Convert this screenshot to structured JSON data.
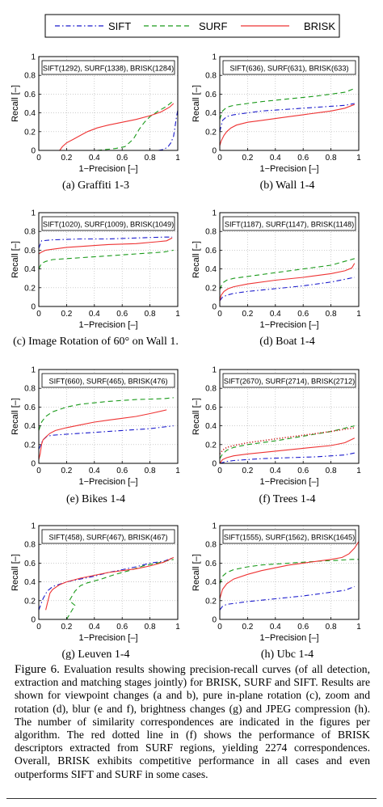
{
  "legend": [
    {
      "name": "SIFT",
      "color": "#1a1acc",
      "dash": "dashdot"
    },
    {
      "name": "SURF",
      "color": "#1a9a1a",
      "dash": "dash"
    },
    {
      "name": "BRISK",
      "color": "#ee3333",
      "dash": "solid"
    }
  ],
  "captions": [
    "(a) Graffiti 1-3",
    "(b) Wall 1-4",
    "(c) Image Rotation of 60° on Wall 1.",
    "(d) Boat 1-4",
    "(e) Bikes 1-4",
    "(f) Trees 1-4",
    "(g) Leuven 1-4",
    "(h) Ubc 1-4"
  ],
  "figure_caption": {
    "label": "Figure 6.",
    "text": "Evaluation results showing precision-recall curves (of all detection, extraction and matching stages jointly) for BRISK, SURF and SIFT. Results are shown for viewpoint changes (a and b), pure in-plane rotation (c), zoom and rotation (d), blur (e and f), brightness changes (g) and JPEG compression (h). The number of similarity correspondences are indicated in the figures per algorithm. The red dotted line in (f) shows the performance of BRISK descriptors extracted from SURF regions, yielding 2274 correspondences. Overall, BRISK exhibits competitive performance in all cases and even outperforms SIFT and SURF in some cases."
  },
  "chart_data": [
    {
      "type": "line",
      "panel": "a",
      "annotation": "SIFT(1292), SURF(1338), BRISK(1284)",
      "xlabel": "1−Precision [–]",
      "ylabel": "Recall [–]",
      "xlim": [
        0,
        1
      ],
      "ylim": [
        0,
        1
      ],
      "xticks": [
        "0",
        "0.2",
        "0.4",
        "0.6",
        "0.8",
        "1"
      ],
      "yticks": [
        "0",
        "0.2",
        "0.4",
        "0.6",
        "0.8",
        "1"
      ],
      "series": [
        {
          "name": "SIFT",
          "x": [
            0.86,
            0.9,
            0.93,
            0.95,
            0.97,
            0.98,
            0.99,
            1.0
          ],
          "y": [
            0.0,
            0.01,
            0.04,
            0.08,
            0.15,
            0.25,
            0.35,
            0.43
          ]
        },
        {
          "name": "SURF",
          "x": [
            0.42,
            0.55,
            0.62,
            0.68,
            0.72,
            0.76,
            0.8,
            0.86,
            0.92,
            0.97
          ],
          "y": [
            0.0,
            0.02,
            0.04,
            0.12,
            0.22,
            0.3,
            0.36,
            0.42,
            0.47,
            0.53
          ]
        },
        {
          "name": "BRISK",
          "x": [
            0.15,
            0.17,
            0.2,
            0.25,
            0.3,
            0.35,
            0.42,
            0.5,
            0.6,
            0.7,
            0.8,
            0.88,
            0.94,
            0.97
          ],
          "y": [
            0.0,
            0.04,
            0.08,
            0.12,
            0.16,
            0.2,
            0.24,
            0.27,
            0.3,
            0.33,
            0.37,
            0.41,
            0.46,
            0.5
          ]
        }
      ]
    },
    {
      "type": "line",
      "panel": "b",
      "annotation": "SIFT(636), SURF(631), BRISK(633)",
      "xlabel": "1−Precision [–]",
      "ylabel": "Recall [–]",
      "xlim": [
        0,
        1
      ],
      "ylim": [
        0,
        1
      ],
      "xticks": [
        "0",
        "0.2",
        "0.4",
        "0.6",
        "0.8",
        "1"
      ],
      "yticks": [
        "0",
        "0.2",
        "0.4",
        "0.6",
        "0.8",
        "1"
      ],
      "series": [
        {
          "name": "SIFT",
          "x": [
            0.0,
            0.02,
            0.05,
            0.1,
            0.2,
            0.3,
            0.5,
            0.7,
            0.9,
            0.97
          ],
          "y": [
            0.2,
            0.32,
            0.36,
            0.38,
            0.4,
            0.42,
            0.44,
            0.46,
            0.48,
            0.5
          ]
        },
        {
          "name": "SURF",
          "x": [
            0.0,
            0.02,
            0.05,
            0.1,
            0.2,
            0.3,
            0.5,
            0.7,
            0.9,
            0.97
          ],
          "y": [
            0.33,
            0.42,
            0.46,
            0.48,
            0.5,
            0.52,
            0.55,
            0.58,
            0.62,
            0.66
          ]
        },
        {
          "name": "BRISK",
          "x": [
            0.0,
            0.01,
            0.03,
            0.05,
            0.08,
            0.12,
            0.2,
            0.3,
            0.4,
            0.5,
            0.6,
            0.7,
            0.8,
            0.9,
            0.97
          ],
          "y": [
            0.05,
            0.1,
            0.16,
            0.2,
            0.24,
            0.27,
            0.3,
            0.32,
            0.34,
            0.36,
            0.38,
            0.4,
            0.42,
            0.45,
            0.49
          ]
        }
      ]
    },
    {
      "type": "line",
      "panel": "c",
      "annotation": "SIFT(1020), SURF(1009), BRISK(1049)",
      "xlabel": "1−Precision [–]",
      "ylabel": "Recall [–]",
      "xlim": [
        0,
        1
      ],
      "ylim": [
        0,
        1
      ],
      "xticks": [
        "0",
        "0.2",
        "0.4",
        "0.6",
        "0.8",
        "1"
      ],
      "yticks": [
        "0",
        "0.2",
        "0.4",
        "0.6",
        "0.8",
        "1"
      ],
      "series": [
        {
          "name": "SIFT",
          "x": [
            0.0,
            0.02,
            0.1,
            0.3,
            0.5,
            0.7,
            0.9,
            0.96
          ],
          "y": [
            0.62,
            0.7,
            0.71,
            0.72,
            0.72,
            0.73,
            0.74,
            0.74
          ]
        },
        {
          "name": "SURF",
          "x": [
            0.0,
            0.02,
            0.05,
            0.1,
            0.3,
            0.5,
            0.7,
            0.9,
            0.97
          ],
          "y": [
            0.4,
            0.46,
            0.48,
            0.5,
            0.52,
            0.54,
            0.56,
            0.58,
            0.6
          ]
        },
        {
          "name": "BRISK",
          "x": [
            0.0,
            0.02,
            0.05,
            0.1,
            0.2,
            0.3,
            0.5,
            0.7,
            0.85,
            0.92,
            0.96
          ],
          "y": [
            0.56,
            0.58,
            0.6,
            0.61,
            0.63,
            0.64,
            0.66,
            0.67,
            0.69,
            0.7,
            0.73
          ]
        }
      ]
    },
    {
      "type": "line",
      "panel": "d",
      "annotation": "SIFT(1187), SURF(1147), BRISK(1148)",
      "xlabel": "1−Precision [–]",
      "ylabel": "Recall [–]",
      "xlim": [
        0,
        1
      ],
      "ylim": [
        0,
        1
      ],
      "xticks": [
        "0",
        "0.2",
        "0.4",
        "0.6",
        "0.8",
        "1"
      ],
      "yticks": [
        "0",
        "0.2",
        "0.4",
        "0.6",
        "0.8",
        "1"
      ],
      "series": [
        {
          "name": "SIFT",
          "x": [
            0.0,
            0.02,
            0.05,
            0.1,
            0.2,
            0.4,
            0.6,
            0.8,
            0.97
          ],
          "y": [
            0.06,
            0.1,
            0.12,
            0.14,
            0.16,
            0.19,
            0.22,
            0.26,
            0.31
          ]
        },
        {
          "name": "SURF",
          "x": [
            0.0,
            0.02,
            0.05,
            0.1,
            0.2,
            0.4,
            0.6,
            0.8,
            0.97
          ],
          "y": [
            0.18,
            0.25,
            0.28,
            0.3,
            0.32,
            0.36,
            0.4,
            0.44,
            0.51
          ]
        },
        {
          "name": "BRISK",
          "x": [
            0.0,
            0.01,
            0.03,
            0.06,
            0.1,
            0.2,
            0.4,
            0.6,
            0.8,
            0.9,
            0.95,
            0.97
          ],
          "y": [
            0.06,
            0.12,
            0.16,
            0.19,
            0.21,
            0.24,
            0.28,
            0.31,
            0.35,
            0.38,
            0.41,
            0.46
          ]
        }
      ]
    },
    {
      "type": "line",
      "panel": "e",
      "annotation": "SIFT(660), SURF(465), BRISK(476)",
      "xlabel": "1−Precision [–]",
      "ylabel": "Recall [–]",
      "xlim": [
        0,
        1
      ],
      "ylim": [
        0,
        1
      ],
      "xticks": [
        "0",
        "0.2",
        "0.4",
        "0.6",
        "0.8",
        "1"
      ],
      "yticks": [
        "0",
        "0.2",
        "0.4",
        "0.6",
        "0.8",
        "1"
      ],
      "series": [
        {
          "name": "SIFT",
          "x": [
            0.0,
            0.03,
            0.06,
            0.1,
            0.2,
            0.4,
            0.6,
            0.8,
            0.97
          ],
          "y": [
            0.15,
            0.25,
            0.29,
            0.3,
            0.31,
            0.33,
            0.35,
            0.37,
            0.4
          ]
        },
        {
          "name": "SURF",
          "x": [
            0.0,
            0.02,
            0.05,
            0.1,
            0.2,
            0.3,
            0.5,
            0.7,
            0.9,
            0.97
          ],
          "y": [
            0.35,
            0.44,
            0.5,
            0.55,
            0.6,
            0.63,
            0.66,
            0.68,
            0.69,
            0.7
          ]
        },
        {
          "name": "BRISK",
          "x": [
            0.0,
            0.01,
            0.02,
            0.03,
            0.05,
            0.08,
            0.12,
            0.2,
            0.3,
            0.4,
            0.5,
            0.6,
            0.7,
            0.8,
            0.92
          ],
          "y": [
            0.04,
            0.1,
            0.2,
            0.25,
            0.28,
            0.32,
            0.35,
            0.38,
            0.41,
            0.44,
            0.46,
            0.48,
            0.5,
            0.53,
            0.57
          ]
        }
      ]
    },
    {
      "type": "line",
      "panel": "f",
      "annotation": "SIFT(2670), SURF(2714), BRISK(2712)",
      "xlabel": "1−Precision [–]",
      "ylabel": "Recall [–]",
      "xlim": [
        0,
        1
      ],
      "ylim": [
        0,
        1
      ],
      "xticks": [
        "0",
        "0.2",
        "0.4",
        "0.6",
        "0.8",
        "1"
      ],
      "yticks": [
        "0",
        "0.2",
        "0.4",
        "0.6",
        "0.8",
        "1"
      ],
      "series": [
        {
          "name": "SIFT",
          "x": [
            0.0,
            0.05,
            0.1,
            0.3,
            0.5,
            0.7,
            0.9,
            0.97
          ],
          "y": [
            0.0,
            0.02,
            0.03,
            0.05,
            0.06,
            0.07,
            0.09,
            0.11
          ]
        },
        {
          "name": "SURF",
          "x": [
            0.0,
            0.02,
            0.05,
            0.1,
            0.2,
            0.4,
            0.6,
            0.8,
            0.97
          ],
          "y": [
            0.05,
            0.1,
            0.14,
            0.17,
            0.2,
            0.24,
            0.29,
            0.34,
            0.4
          ]
        },
        {
          "name": "BRISK",
          "x": [
            0.0,
            0.02,
            0.05,
            0.1,
            0.2,
            0.4,
            0.6,
            0.8,
            0.9,
            0.97
          ],
          "y": [
            0.0,
            0.04,
            0.06,
            0.08,
            0.1,
            0.13,
            0.16,
            0.19,
            0.22,
            0.27
          ]
        },
        {
          "x": [
            0.0,
            0.02,
            0.05,
            0.1,
            0.2,
            0.4,
            0.6,
            0.8,
            0.97
          ],
          "y": [
            0.1,
            0.14,
            0.17,
            0.19,
            0.22,
            0.26,
            0.3,
            0.34,
            0.38
          ]
        }
      ]
    },
    {
      "type": "line",
      "panel": "g",
      "annotation": "SIFT(458), SURF(467), BRISK(467)",
      "xlabel": "1−Precision [–]",
      "ylabel": "Recall [–]",
      "xlim": [
        0,
        1
      ],
      "ylim": [
        0,
        1
      ],
      "xticks": [
        "0",
        "0.2",
        "0.4",
        "0.6",
        "0.8",
        "1"
      ],
      "yticks": [
        "0",
        "0.2",
        "0.4",
        "0.6",
        "0.8",
        "1"
      ],
      "series": [
        {
          "name": "SIFT",
          "x": [
            0.0,
            0.03,
            0.06,
            0.1,
            0.2,
            0.3,
            0.4,
            0.5,
            0.6,
            0.7,
            0.8,
            0.9,
            0.97
          ],
          "y": [
            0.1,
            0.22,
            0.3,
            0.35,
            0.4,
            0.43,
            0.46,
            0.5,
            0.53,
            0.56,
            0.6,
            0.62,
            0.66
          ]
        },
        {
          "name": "SURF",
          "x": [
            0.2,
            0.22,
            0.24,
            0.26,
            0.22,
            0.24,
            0.26,
            0.28,
            0.3,
            0.35,
            0.45,
            0.55,
            0.65,
            0.75,
            0.85,
            0.97
          ],
          "y": [
            0.0,
            0.05,
            0.1,
            0.15,
            0.2,
            0.25,
            0.3,
            0.33,
            0.36,
            0.39,
            0.43,
            0.48,
            0.52,
            0.57,
            0.6,
            0.64
          ]
        },
        {
          "name": "BRISK",
          "x": [
            0.05,
            0.06,
            0.07,
            0.08,
            0.1,
            0.15,
            0.2,
            0.3,
            0.4,
            0.5,
            0.6,
            0.7,
            0.8,
            0.9,
            0.97
          ],
          "y": [
            0.1,
            0.16,
            0.22,
            0.28,
            0.32,
            0.37,
            0.4,
            0.44,
            0.47,
            0.5,
            0.52,
            0.54,
            0.57,
            0.61,
            0.66
          ]
        }
      ]
    },
    {
      "type": "line",
      "panel": "h",
      "annotation": "SIFT(1555), SURF(1562), BRISK(1645)",
      "xlabel": "1−Precision [–]",
      "ylabel": "Recall [–]",
      "xlim": [
        0,
        1
      ],
      "ylim": [
        0,
        1
      ],
      "xticks": [
        "0",
        "0.2",
        "0.4",
        "0.6",
        "0.8",
        "1"
      ],
      "yticks": [
        "0",
        "0.2",
        "0.4",
        "0.6",
        "0.8",
        "1"
      ],
      "series": [
        {
          "name": "SIFT",
          "x": [
            0.0,
            0.02,
            0.05,
            0.1,
            0.2,
            0.4,
            0.6,
            0.8,
            0.9,
            0.97
          ],
          "y": [
            0.1,
            0.14,
            0.16,
            0.17,
            0.19,
            0.22,
            0.25,
            0.29,
            0.31,
            0.35
          ]
        },
        {
          "name": "SURF",
          "x": [
            0.0,
            0.02,
            0.05,
            0.1,
            0.2,
            0.3,
            0.5,
            0.7,
            0.85,
            0.95,
            1.0
          ],
          "y": [
            0.38,
            0.46,
            0.5,
            0.53,
            0.56,
            0.58,
            0.6,
            0.62,
            0.63,
            0.64,
            0.64
          ]
        },
        {
          "name": "BRISK",
          "x": [
            0.0,
            0.02,
            0.05,
            0.1,
            0.2,
            0.3,
            0.4,
            0.5,
            0.6,
            0.7,
            0.8,
            0.88,
            0.93,
            0.97,
            1.0
          ],
          "y": [
            0.22,
            0.32,
            0.38,
            0.43,
            0.48,
            0.52,
            0.55,
            0.58,
            0.6,
            0.62,
            0.64,
            0.66,
            0.7,
            0.76,
            0.83
          ]
        }
      ]
    }
  ]
}
